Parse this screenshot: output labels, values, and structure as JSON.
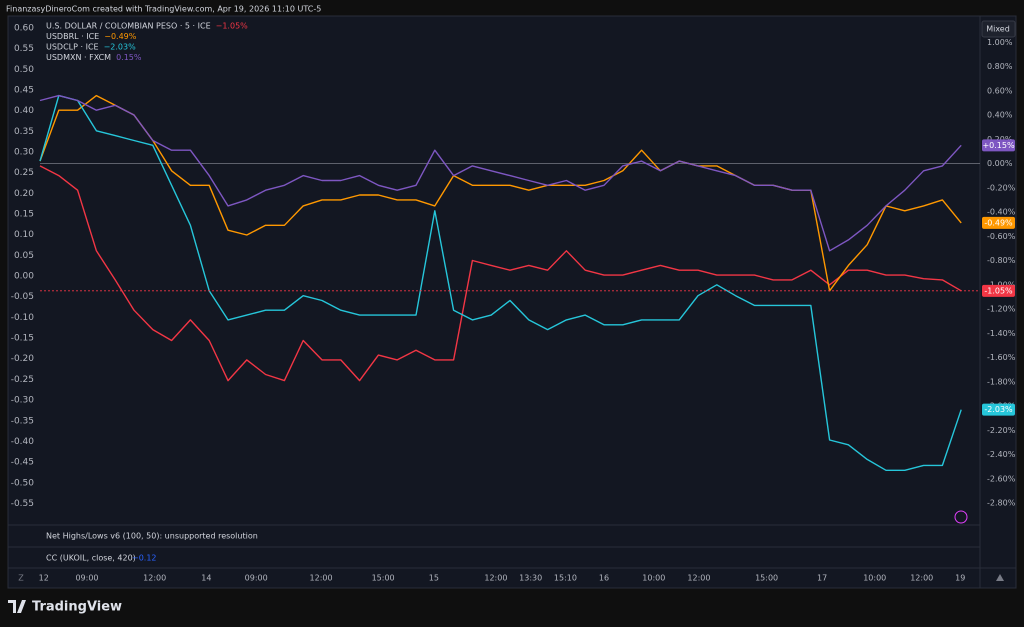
{
  "header": "FinanzasyDineroCom created with TradingView.com, Apr 19, 2026 11:10 UTC-5",
  "scale_mode": "Mixed",
  "indicators": [
    {
      "name": "Net Highs/Lows v6 (100, 50): unsupported resolution"
    },
    {
      "name": "CC (UKOIL, close, 420)",
      "value": "−0.12"
    }
  ],
  "brand": "TradingView",
  "chart_data": {
    "type": "line",
    "x": [
      0,
      2,
      4,
      6,
      8,
      10,
      12,
      14,
      16,
      18,
      20,
      22,
      24,
      26,
      28,
      30,
      32,
      34,
      36,
      38,
      40,
      42,
      44,
      46,
      48,
      50,
      52,
      54,
      56,
      58,
      60,
      62,
      64,
      66,
      68,
      70,
      72,
      74,
      76,
      78,
      80,
      82,
      84,
      86,
      88,
      90,
      92,
      94,
      96,
      98
    ],
    "xlim": [
      0,
      100
    ],
    "xticks": [
      {
        "value": 0.4,
        "label": "12"
      },
      {
        "value": 5,
        "label": "09:00"
      },
      {
        "value": 12.2,
        "label": "12:00"
      },
      {
        "value": 17.7,
        "label": "14"
      },
      {
        "value": 23,
        "label": "09:00"
      },
      {
        "value": 29.9,
        "label": "12:00"
      },
      {
        "value": 36.5,
        "label": "15:00"
      },
      {
        "value": 41.9,
        "label": "15"
      },
      {
        "value": 48.5,
        "label": "12:00"
      },
      {
        "value": 52.2,
        "label": "13:30"
      },
      {
        "value": 55.9,
        "label": "15:10"
      },
      {
        "value": 60,
        "label": "16"
      },
      {
        "value": 65.3,
        "label": "10:00"
      },
      {
        "value": 70.1,
        "label": "12:00"
      },
      {
        "value": 77.3,
        "label": "15:00"
      },
      {
        "value": 83.2,
        "label": "17"
      },
      {
        "value": 88.8,
        "label": "10:00"
      },
      {
        "value": 93.8,
        "label": "12:00"
      },
      {
        "value": 97.9,
        "label": "19"
      }
    ],
    "ylim": [
      -0.59,
      0.624
    ],
    "yticks": [
      {
        "value": 0.6,
        "label": "0.60"
      },
      {
        "value": 0.55,
        "label": "0.55"
      },
      {
        "value": 0.5,
        "label": "0.50"
      },
      {
        "value": 0.45,
        "label": "0.45"
      },
      {
        "value": 0.4,
        "label": "0.40"
      },
      {
        "value": 0.35,
        "label": "0.35"
      },
      {
        "value": 0.3,
        "label": "0.30"
      },
      {
        "value": 0.25,
        "label": "0.25"
      },
      {
        "value": 0.2,
        "label": "0.20"
      },
      {
        "value": 0.15,
        "label": "0.15"
      },
      {
        "value": 0.1,
        "label": "0.10"
      },
      {
        "value": 0.05,
        "label": "0.05"
      },
      {
        "value": 0,
        "label": "0.00"
      },
      {
        "value": -0.05,
        "label": "-0.05"
      },
      {
        "value": -0.1,
        "label": "-0.10"
      },
      {
        "value": -0.15,
        "label": "-0.15"
      },
      {
        "value": -0.2,
        "label": "-0.20"
      },
      {
        "value": -0.25,
        "label": "-0.25"
      },
      {
        "value": -0.3,
        "label": "-0.30"
      },
      {
        "value": -0.35,
        "label": "-0.35"
      },
      {
        "value": -0.4,
        "label": "-0.40"
      },
      {
        "value": -0.45,
        "label": "-0.45"
      },
      {
        "value": -0.5,
        "label": "-0.50"
      },
      {
        "value": -0.55,
        "label": "-0.55"
      }
    ],
    "y2lim": [
      -2.94,
      1.2
    ],
    "y2ticks": [
      {
        "value": 1,
        "label": "1.00%"
      },
      {
        "value": 0.8,
        "label": "0.80%"
      },
      {
        "value": 0.6,
        "label": "0.60%"
      },
      {
        "value": 0.4,
        "label": "0.40%"
      },
      {
        "value": 0.2,
        "label": "0.20%"
      },
      {
        "value": 0,
        "label": "0.00%"
      },
      {
        "value": -0.2,
        "label": "-0.20%"
      },
      {
        "value": -0.4,
        "label": "-0.40%"
      },
      {
        "value": -0.6,
        "label": "-0.60%"
      },
      {
        "value": -0.8,
        "label": "-0.80%"
      },
      {
        "value": -1,
        "label": "-1.00%"
      },
      {
        "value": -1.2,
        "label": "-1.20%"
      },
      {
        "value": -1.4,
        "label": "-1.40%"
      },
      {
        "value": -1.6,
        "label": "-1.60%"
      },
      {
        "value": -1.8,
        "label": "-1.80%"
      },
      {
        "value": -2,
        "label": "-2.00%"
      },
      {
        "value": -2.2,
        "label": "-2.20%"
      },
      {
        "value": -2.4,
        "label": "-2.40%"
      },
      {
        "value": -2.6,
        "label": "-2.60%"
      },
      {
        "value": -2.8,
        "label": "-2.80%"
      }
    ],
    "grid": false,
    "series": [
      {
        "name": "U.S. DOLLAR / COLOMBIAN PESO · 5 · ICE",
        "change": "−1.05%",
        "tag": "-1.05%",
        "color": "#f23645",
        "axis": "y2",
        "values": [
          -0.02,
          -0.1,
          -0.22,
          -0.72,
          -0.96,
          -1.21,
          -1.37,
          -1.46,
          -1.29,
          -1.46,
          -1.79,
          -1.62,
          -1.74,
          -1.79,
          -1.46,
          -1.62,
          -1.62,
          -1.79,
          -1.58,
          -1.62,
          -1.54,
          -1.62,
          -1.62,
          -0.8,
          -0.84,
          -0.88,
          -0.84,
          -0.88,
          -0.72,
          -0.88,
          -0.92,
          -0.92,
          -0.88,
          -0.84,
          -0.88,
          -0.88,
          -0.92,
          -0.92,
          -0.92,
          -0.96,
          -0.96,
          -0.88,
          -1.0,
          -0.88,
          -0.88,
          -0.92,
          -0.92,
          -0.95,
          -0.96,
          -1.05
        ]
      },
      {
        "name": "USDBRL · ICE",
        "change": "−0.49%",
        "tag": "-0.49%",
        "color": "#ff9800",
        "axis": "y2",
        "values": [
          0.02,
          0.44,
          0.44,
          0.56,
          0.48,
          0.4,
          0.19,
          -0.06,
          -0.18,
          -0.18,
          -0.55,
          -0.59,
          -0.51,
          -0.51,
          -0.35,
          -0.3,
          -0.3,
          -0.26,
          -0.26,
          -0.3,
          -0.3,
          -0.35,
          -0.1,
          -0.18,
          -0.18,
          -0.18,
          -0.22,
          -0.18,
          -0.18,
          -0.18,
          -0.14,
          -0.06,
          0.11,
          -0.06,
          0.02,
          -0.02,
          -0.02,
          -0.1,
          -0.18,
          -0.18,
          -0.22,
          -0.22,
          -1.05,
          -0.84,
          -0.67,
          -0.35,
          -0.39,
          -0.35,
          -0.3,
          -0.49
        ]
      },
      {
        "name": "USDCLP · ICE",
        "change": "−2.03%",
        "tag": "-2.03%",
        "color": "#26c6da",
        "axis": "y2",
        "values": [
          0.02,
          0.56,
          0.52,
          0.27,
          0.23,
          0.19,
          0.15,
          -0.18,
          -0.51,
          -1.05,
          -1.29,
          -1.25,
          -1.21,
          -1.21,
          -1.09,
          -1.13,
          -1.21,
          -1.25,
          -1.25,
          -1.25,
          -1.25,
          -0.39,
          -1.21,
          -1.29,
          -1.25,
          -1.13,
          -1.29,
          -1.37,
          -1.29,
          -1.25,
          -1.33,
          -1.33,
          -1.29,
          -1.29,
          -1.29,
          -1.09,
          -1.0,
          -1.09,
          -1.17,
          -1.17,
          -1.17,
          -1.17,
          -2.28,
          -2.32,
          -2.44,
          -2.53,
          -2.53,
          -2.49,
          -2.49,
          -2.03
        ]
      },
      {
        "name": "USDMXN · FXCM",
        "change": "0.15%",
        "tag": "+0.15%",
        "color": "#7e57c2",
        "axis": "y2",
        "values": [
          0.52,
          0.56,
          0.52,
          0.44,
          0.48,
          0.4,
          0.19,
          0.11,
          0.11,
          -0.1,
          -0.35,
          -0.3,
          -0.22,
          -0.18,
          -0.1,
          -0.14,
          -0.14,
          -0.1,
          -0.18,
          -0.22,
          -0.18,
          0.11,
          -0.1,
          -0.02,
          -0.06,
          -0.1,
          -0.14,
          -0.18,
          -0.14,
          -0.22,
          -0.18,
          -0.02,
          0.02,
          -0.06,
          0.02,
          -0.02,
          -0.06,
          -0.1,
          -0.18,
          -0.18,
          -0.22,
          -0.22,
          -0.72,
          -0.63,
          -0.51,
          -0.35,
          -0.22,
          -0.06,
          -0.02,
          0.15
        ]
      }
    ]
  }
}
